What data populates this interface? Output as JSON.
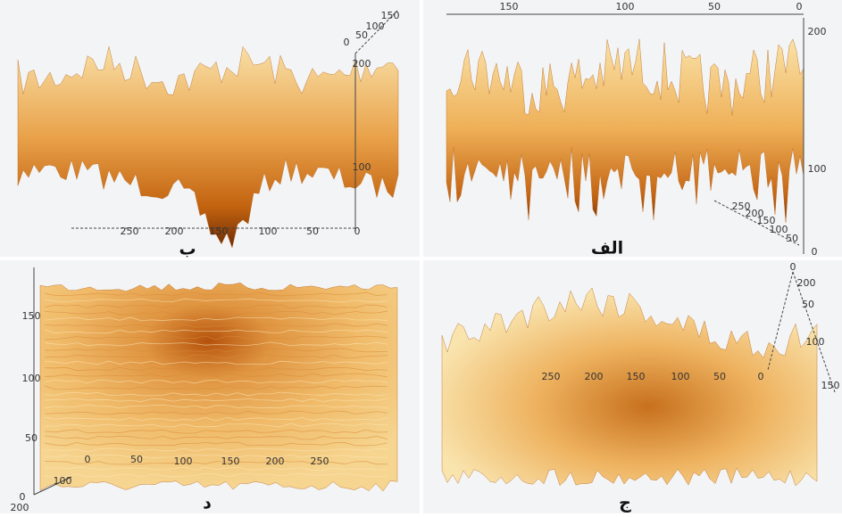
{
  "panels": [
    {
      "label": "ب",
      "x_ticks": [
        "250",
        "200",
        "150",
        "100",
        "50",
        "0"
      ],
      "z_ticks": [
        "200",
        "100"
      ],
      "depth_ticks": [
        "0",
        "50",
        "100",
        "150"
      ]
    },
    {
      "label": "الف",
      "top_ticks": [
        "150",
        "100",
        "50",
        "0"
      ],
      "z_ticks": [
        "200",
        "100",
        "0"
      ],
      "depth_ticks": [
        "250",
        "200",
        "150",
        "100",
        "50"
      ]
    },
    {
      "label": "د",
      "y_ticks": [
        "150",
        "100",
        "50",
        "0"
      ],
      "x_ticks": [
        "0",
        "50",
        "100",
        "150",
        "200",
        "250"
      ],
      "corner_ticks": [
        "100",
        "200"
      ]
    },
    {
      "label": "ج",
      "x_ticks": [
        "250",
        "200",
        "150",
        "100",
        "50",
        "0"
      ],
      "side_ticks": [
        "0",
        "200",
        "50",
        "100",
        "150"
      ]
    }
  ]
}
